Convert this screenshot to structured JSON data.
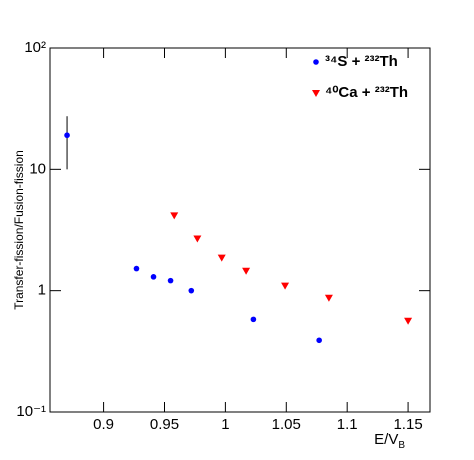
{
  "chart_data": {
    "type": "scatter",
    "x_label": {
      "text": "E/V",
      "subscript": "B"
    },
    "y_label": "Transfer-fission/Fusion-fission",
    "log_y": true,
    "xlim": [
      0.856,
      1.168
    ],
    "ylim": [
      0.1,
      100
    ],
    "xticks": [
      0.9,
      0.95,
      1,
      1.05,
      1.1,
      1.15
    ],
    "yticks": [
      {
        "value": 0.1,
        "label": "10⁻¹"
      },
      1,
      10,
      {
        "value": 100,
        "label": "10²"
      }
    ],
    "legend": "top-right",
    "series": [
      {
        "name": "³⁴S + ²³²Th",
        "color": "#0000ff",
        "marker": "circle",
        "x": [
          0.87,
          0.927,
          0.941,
          0.955,
          0.972,
          1.023,
          1.077
        ],
        "values": [
          19.1,
          1.52,
          1.3,
          1.21,
          1.0,
          0.58,
          0.39
        ],
        "error_low": [
          10,
          null,
          null,
          null,
          null,
          null,
          null
        ],
        "error_high": [
          27.4,
          null,
          null,
          null,
          null,
          null,
          null
        ]
      },
      {
        "name": "⁴⁰Ca + ²³²Th",
        "color": "#ff0000",
        "marker": "triangle-down",
        "x": [
          0.958,
          0.977,
          0.997,
          1.017,
          1.049,
          1.085,
          1.15
        ],
        "values": [
          4.17,
          2.69,
          1.87,
          1.46,
          1.1,
          0.875,
          0.565
        ]
      }
    ]
  }
}
